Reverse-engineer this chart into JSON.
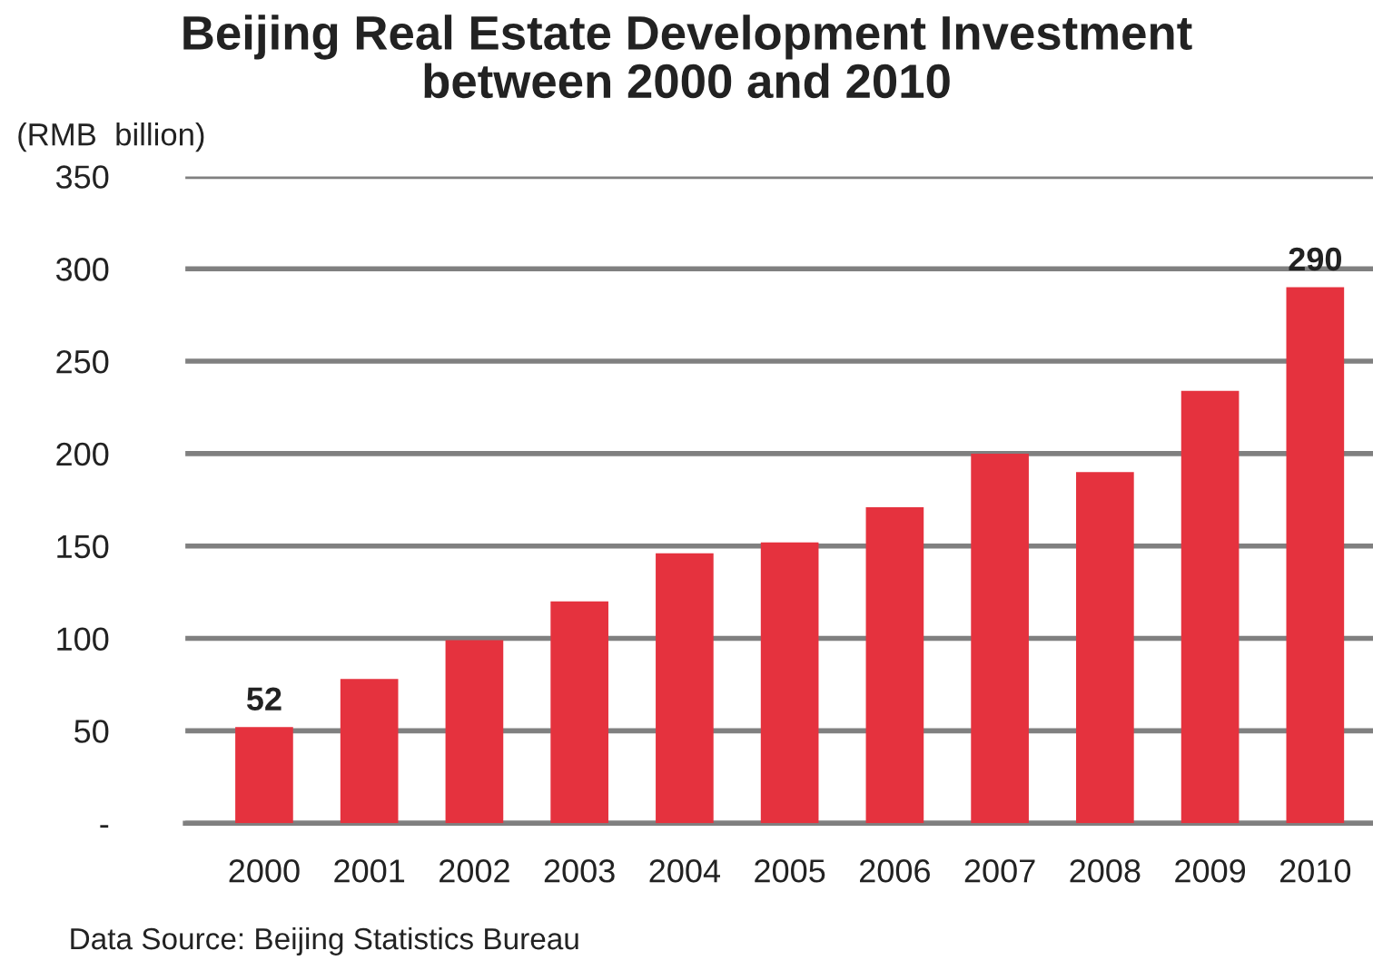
{
  "chart_data": {
    "type": "bar",
    "title": "Beijing Real Estate Development Investment\nbetween 2000 and 2010",
    "ylabel": "(RMB  billion)",
    "categories": [
      "2000",
      "2001",
      "2002",
      "2003",
      "2004",
      "2005",
      "2006",
      "2007",
      "2008",
      "2009",
      "2010"
    ],
    "values": [
      52,
      78,
      99,
      120,
      146,
      152,
      171,
      200,
      190,
      234,
      290
    ],
    "value_labels": [
      "52",
      null,
      null,
      null,
      null,
      null,
      null,
      null,
      null,
      null,
      "290"
    ],
    "color": "#e5323e",
    "ylim": [
      0,
      350
    ],
    "yticks": [
      {
        "value": 0,
        "label": "-"
      },
      50,
      100,
      150,
      200,
      250,
      300,
      350
    ],
    "grid": "y",
    "legend": false,
    "annotations": [
      "Data Source: Beijing Statistics Bureau"
    ]
  }
}
